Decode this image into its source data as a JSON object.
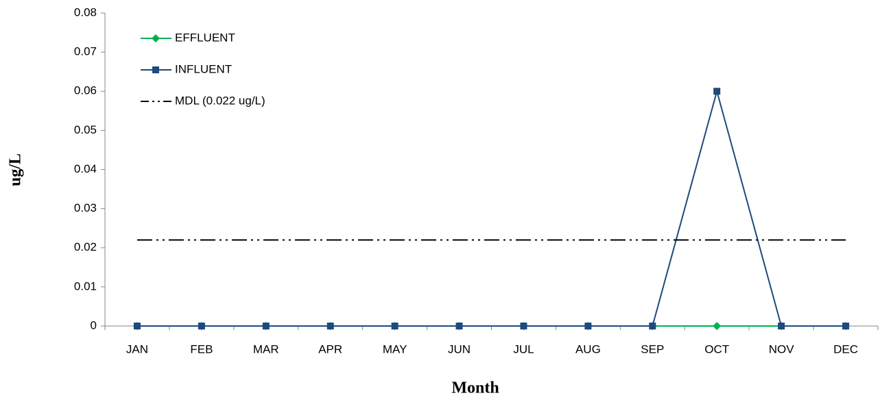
{
  "chart_data": {
    "type": "line",
    "x_label": "Month",
    "y_label": "ug/L",
    "categories": [
      "JAN",
      "FEB",
      "MAR",
      "APR",
      "MAY",
      "JUN",
      "JUL",
      "AUG",
      "SEP",
      "OCT",
      "NOV",
      "DEC"
    ],
    "series": [
      {
        "name": "EFFLUENT",
        "color": "#00b050",
        "marker": "diamond",
        "values": [
          0,
          0,
          0,
          0,
          0,
          0,
          0,
          0,
          0,
          0,
          0,
          0
        ]
      },
      {
        "name": "INFLUENT",
        "color": "#1f497d",
        "marker": "square",
        "values": [
          0,
          0,
          0,
          0,
          0,
          0,
          0,
          0,
          0,
          0.06,
          0,
          0
        ]
      },
      {
        "name": "MDL (0.022 ug/L)",
        "color": "#000000",
        "dash": "22 6 3 6 3 6",
        "values": [
          0.022,
          0.022,
          0.022,
          0.022,
          0.022,
          0.022,
          0.022,
          0.022,
          0.022,
          0.022,
          0.022,
          0.022
        ]
      }
    ],
    "ylim": [
      0,
      0.08
    ],
    "yticks": [
      0,
      0.01,
      0.02,
      0.03,
      0.04,
      0.05,
      0.06,
      0.07,
      0.08
    ],
    "legend": "upper left"
  }
}
